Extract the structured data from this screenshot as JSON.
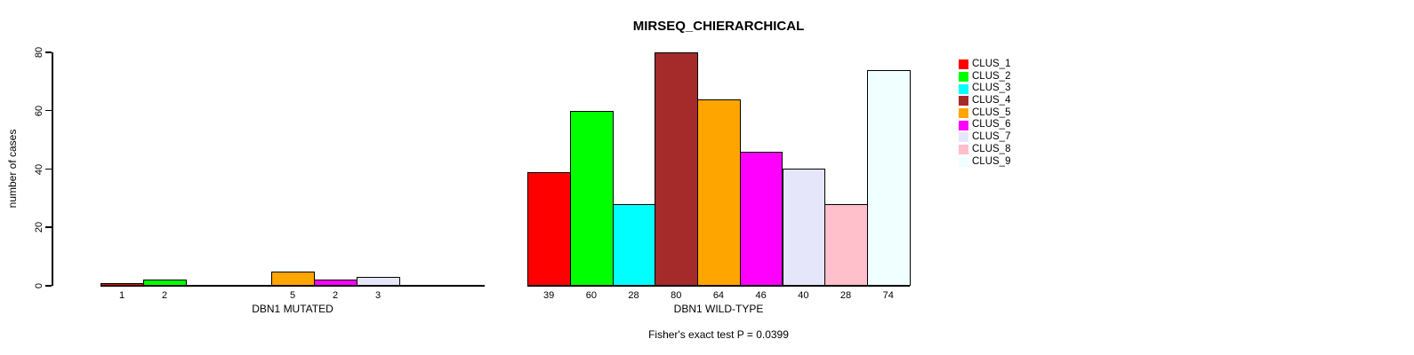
{
  "title": "MIRSEQ_CHIERARCHICAL",
  "footer": "Fisher's exact test P = 0.0399",
  "axis_color": "#000000",
  "background_color": "#ffffff",
  "chart_data": {
    "type": "bar",
    "title": "MIRSEQ_CHIERARCHICAL",
    "ylabel": "number of cases",
    "ylim": [
      0,
      80
    ],
    "yticks": [
      "0",
      "20",
      "40",
      "60",
      "80"
    ],
    "grid": false,
    "legend_position": "right",
    "legend": [
      {
        "label": "CLUS_1",
        "color": "#FF0000"
      },
      {
        "label": "CLUS_2",
        "color": "#00FF00"
      },
      {
        "label": "CLUS_3",
        "color": "#00FFFF"
      },
      {
        "label": "CLUS_4",
        "color": "#A52A2A"
      },
      {
        "label": "CLUS_5",
        "color": "#FFA500"
      },
      {
        "label": "CLUS_6",
        "color": "#FF00FF"
      },
      {
        "label": "CLUS_7",
        "color": "#E6E6FA"
      },
      {
        "label": "CLUS_8",
        "color": "#FFC0CB"
      },
      {
        "label": "CLUS_9",
        "color": "#F0FFFF"
      }
    ],
    "groups": [
      {
        "xlabel": "DBN1 MUTATED",
        "categories": [
          "CLUS_1",
          "CLUS_2",
          "CLUS_3",
          "CLUS_4",
          "CLUS_5",
          "CLUS_6",
          "CLUS_7",
          "CLUS_8",
          "CLUS_9"
        ],
        "values": [
          1,
          2,
          0,
          0,
          5,
          2,
          3,
          0,
          0
        ],
        "bar_labels": [
          "1",
          "2",
          "",
          "",
          "5",
          "2",
          "3",
          "",
          ""
        ]
      },
      {
        "xlabel": "DBN1 WILD-TYPE",
        "categories": [
          "CLUS_1",
          "CLUS_2",
          "CLUS_3",
          "CLUS_4",
          "CLUS_5",
          "CLUS_6",
          "CLUS_7",
          "CLUS_8",
          "CLUS_9"
        ],
        "values": [
          39,
          60,
          28,
          80,
          64,
          46,
          40,
          28,
          74
        ],
        "bar_labels": [
          "39",
          "60",
          "28",
          "80",
          "64",
          "46",
          "40",
          "28",
          "74"
        ]
      }
    ],
    "annotation": "Fisher's exact test P = 0.0399"
  }
}
